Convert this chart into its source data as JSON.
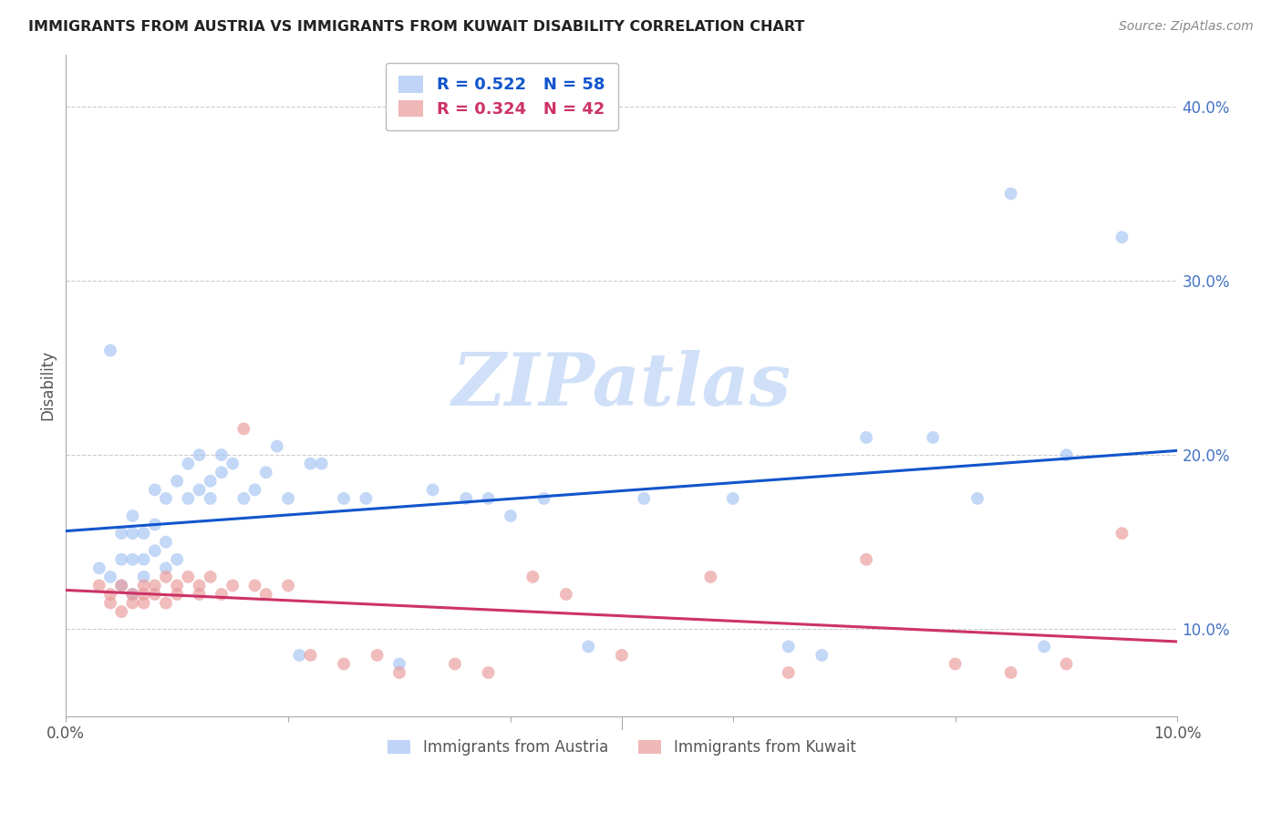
{
  "title": "IMMIGRANTS FROM AUSTRIA VS IMMIGRANTS FROM KUWAIT DISABILITY CORRELATION CHART",
  "source": "Source: ZipAtlas.com",
  "ylabel": "Disability",
  "ytick_labels": [
    "10.0%",
    "20.0%",
    "30.0%",
    "40.0%"
  ],
  "ytick_values": [
    0.1,
    0.2,
    0.3,
    0.4
  ],
  "xlim": [
    0.0,
    0.1
  ],
  "ylim": [
    0.05,
    0.43
  ],
  "color_austria": "#a4c2f4",
  "color_kuwait": "#ea9999",
  "line_color_austria": "#1155cc",
  "line_color_kuwait": "#cc3366",
  "watermark_text": "ZIPatlas",
  "watermark_color": "#d0e0f8",
  "austria_x": [
    0.003,
    0.004,
    0.004,
    0.005,
    0.005,
    0.005,
    0.006,
    0.006,
    0.006,
    0.006,
    0.007,
    0.007,
    0.007,
    0.008,
    0.008,
    0.008,
    0.009,
    0.009,
    0.009,
    0.01,
    0.01,
    0.011,
    0.011,
    0.012,
    0.012,
    0.013,
    0.013,
    0.014,
    0.014,
    0.015,
    0.016,
    0.017,
    0.018,
    0.019,
    0.02,
    0.021,
    0.022,
    0.023,
    0.025,
    0.027,
    0.03,
    0.033,
    0.036,
    0.038,
    0.04,
    0.043,
    0.047,
    0.052,
    0.06,
    0.065,
    0.068,
    0.072,
    0.078,
    0.082,
    0.085,
    0.088,
    0.09,
    0.095
  ],
  "austria_y": [
    0.135,
    0.13,
    0.26,
    0.125,
    0.14,
    0.155,
    0.12,
    0.14,
    0.155,
    0.165,
    0.13,
    0.155,
    0.14,
    0.145,
    0.16,
    0.18,
    0.135,
    0.15,
    0.175,
    0.14,
    0.185,
    0.175,
    0.195,
    0.18,
    0.2,
    0.185,
    0.175,
    0.19,
    0.2,
    0.195,
    0.175,
    0.18,
    0.19,
    0.205,
    0.175,
    0.085,
    0.195,
    0.195,
    0.175,
    0.175,
    0.08,
    0.18,
    0.175,
    0.175,
    0.165,
    0.175,
    0.09,
    0.175,
    0.175,
    0.09,
    0.085,
    0.21,
    0.21,
    0.175,
    0.35,
    0.09,
    0.2,
    0.325
  ],
  "kuwait_x": [
    0.003,
    0.004,
    0.004,
    0.005,
    0.005,
    0.006,
    0.006,
    0.007,
    0.007,
    0.007,
    0.008,
    0.008,
    0.009,
    0.009,
    0.01,
    0.01,
    0.011,
    0.012,
    0.012,
    0.013,
    0.014,
    0.015,
    0.016,
    0.017,
    0.018,
    0.02,
    0.022,
    0.025,
    0.028,
    0.03,
    0.035,
    0.038,
    0.042,
    0.045,
    0.05,
    0.058,
    0.065,
    0.072,
    0.08,
    0.085,
    0.09,
    0.095
  ],
  "kuwait_y": [
    0.125,
    0.115,
    0.12,
    0.11,
    0.125,
    0.12,
    0.115,
    0.12,
    0.125,
    0.115,
    0.125,
    0.12,
    0.13,
    0.115,
    0.12,
    0.125,
    0.13,
    0.125,
    0.12,
    0.13,
    0.12,
    0.125,
    0.215,
    0.125,
    0.12,
    0.125,
    0.085,
    0.08,
    0.085,
    0.075,
    0.08,
    0.075,
    0.13,
    0.12,
    0.085,
    0.13,
    0.075,
    0.14,
    0.08,
    0.075,
    0.08,
    0.155
  ]
}
